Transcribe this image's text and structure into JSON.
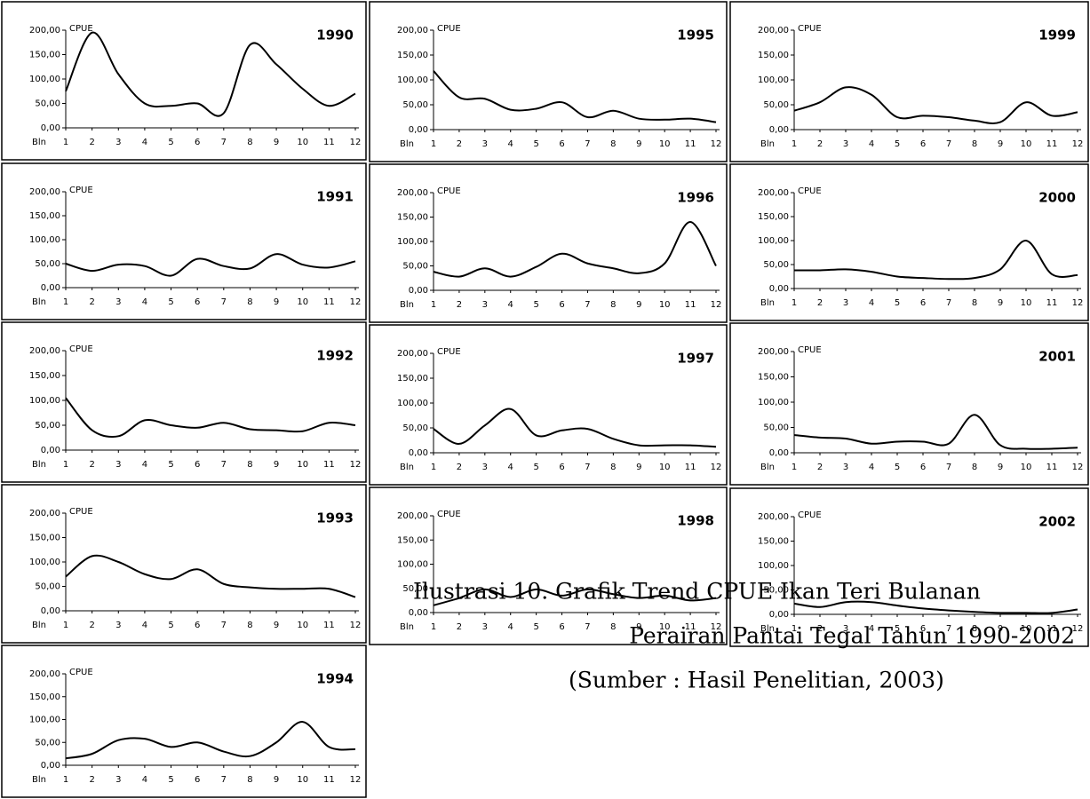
{
  "chart_data": [
    {
      "type": "line",
      "title": "1990",
      "y_label": "CPUE",
      "x_label": "Bln",
      "categories": [
        "1",
        "2",
        "3",
        "4",
        "5",
        "6",
        "7",
        "8",
        "9",
        "10",
        "11",
        "12"
      ],
      "values": [
        75,
        195,
        110,
        50,
        45,
        50,
        30,
        170,
        130,
        80,
        45,
        70
      ],
      "ylim": [
        0,
        200
      ],
      "yticks": [
        {
          "value": 0,
          "label": "0,00"
        },
        {
          "value": 50,
          "label": "50,00"
        },
        {
          "value": 100,
          "label": "100,00"
        },
        {
          "value": 150,
          "label": "150,00"
        },
        {
          "value": 200,
          "label": "200,00"
        }
      ],
      "color": "#000000"
    },
    {
      "type": "line",
      "title": "1991",
      "y_label": "CPUE",
      "x_label": "Bln",
      "categories": [
        "1",
        "2",
        "3",
        "4",
        "5",
        "6",
        "7",
        "8",
        "9",
        "10",
        "11",
        "12"
      ],
      "values": [
        50,
        35,
        48,
        45,
        25,
        60,
        45,
        40,
        70,
        48,
        42,
        55
      ],
      "ylim": [
        0,
        200
      ],
      "yticks": [
        {
          "value": 0,
          "label": "0,00"
        },
        {
          "value": 50,
          "label": "50,00"
        },
        {
          "value": 100,
          "label": "100,00"
        },
        {
          "value": 150,
          "label": "150,00"
        },
        {
          "value": 200,
          "label": "200,00"
        }
      ],
      "color": "#000000"
    },
    {
      "type": "line",
      "title": "1992",
      "y_label": "CPUE",
      "x_label": "Bln",
      "categories": [
        "1",
        "2",
        "3",
        "4",
        "5",
        "6",
        "7",
        "8",
        "9",
        "10",
        "11",
        "12"
      ],
      "values": [
        105,
        40,
        28,
        60,
        50,
        45,
        55,
        42,
        40,
        38,
        55,
        50
      ],
      "ylim": [
        0,
        200
      ],
      "yticks": [
        {
          "value": 0,
          "label": "0,00"
        },
        {
          "value": 50,
          "label": "50,00"
        },
        {
          "value": 100,
          "label": "100,00"
        },
        {
          "value": 150,
          "label": "150,00"
        },
        {
          "value": 200,
          "label": "200,00"
        }
      ],
      "color": "#000000"
    },
    {
      "type": "line",
      "title": "1993",
      "y_label": "CPUE",
      "x_label": "Bln",
      "categories": [
        "1",
        "2",
        "3",
        "4",
        "5",
        "6",
        "7",
        "8",
        "9",
        "10",
        "11",
        "12"
      ],
      "values": [
        70,
        112,
        100,
        75,
        65,
        85,
        55,
        48,
        45,
        45,
        45,
        28
      ],
      "ylim": [
        0,
        200
      ],
      "yticks": [
        {
          "value": 0,
          "label": "0,00"
        },
        {
          "value": 50,
          "label": "50,00"
        },
        {
          "value": 100,
          "label": "100,00"
        },
        {
          "value": 150,
          "label": "150,00"
        },
        {
          "value": 200,
          "label": "200,00"
        }
      ],
      "color": "#000000"
    },
    {
      "type": "line",
      "title": "1994",
      "y_label": "CPUE",
      "x_label": "Bln",
      "categories": [
        "1",
        "2",
        "3",
        "4",
        "5",
        "6",
        "7",
        "8",
        "9",
        "10",
        "11",
        "12"
      ],
      "values": [
        15,
        25,
        55,
        58,
        40,
        50,
        30,
        20,
        50,
        95,
        40,
        35
      ],
      "ylim": [
        0,
        200
      ],
      "yticks": [
        {
          "value": 0,
          "label": "0,00"
        },
        {
          "value": 50,
          "label": "50,00"
        },
        {
          "value": 100,
          "label": "100,00"
        },
        {
          "value": 150,
          "label": "150,00"
        },
        {
          "value": 200,
          "label": "200,00"
        }
      ],
      "color": "#000000"
    },
    {
      "type": "line",
      "title": "1995",
      "y_label": "CPUE",
      "x_label": "Bln",
      "categories": [
        "1",
        "2",
        "3",
        "4",
        "5",
        "6",
        "7",
        "8",
        "9",
        "10",
        "11",
        "12"
      ],
      "values": [
        118,
        65,
        62,
        40,
        42,
        55,
        25,
        38,
        22,
        20,
        22,
        15
      ],
      "ylim": [
        0,
        200
      ],
      "yticks": [
        {
          "value": 0,
          "label": "0,00"
        },
        {
          "value": 50,
          "label": "50,00"
        },
        {
          "value": 100,
          "label": "100,00"
        },
        {
          "value": 150,
          "label": "150,00"
        },
        {
          "value": 200,
          "label": "200,00"
        }
      ],
      "color": "#000000"
    },
    {
      "type": "line",
      "title": "1996",
      "y_label": "CPUE",
      "x_label": "Bln",
      "categories": [
        "1",
        "2",
        "3",
        "4",
        "5",
        "6",
        "7",
        "8",
        "9",
        "10",
        "11",
        "12"
      ],
      "values": [
        38,
        28,
        45,
        28,
        48,
        75,
        55,
        45,
        35,
        55,
        140,
        50
      ],
      "ylim": [
        0,
        200
      ],
      "yticks": [
        {
          "value": 0,
          "label": "0,00"
        },
        {
          "value": 50,
          "label": "50,00"
        },
        {
          "value": 100,
          "label": "100,00"
        },
        {
          "value": 150,
          "label": "150,00"
        },
        {
          "value": 200,
          "label": "200,00"
        }
      ],
      "color": "#000000"
    },
    {
      "type": "line",
      "title": "1997",
      "y_label": "CPUE",
      "x_label": "Bln",
      "categories": [
        "1",
        "2",
        "3",
        "4",
        "5",
        "6",
        "7",
        "8",
        "9",
        "10",
        "11",
        "12"
      ],
      "values": [
        48,
        18,
        55,
        88,
        35,
        45,
        48,
        28,
        15,
        15,
        15,
        12
      ],
      "ylim": [
        0,
        200
      ],
      "yticks": [
        {
          "value": 0,
          "label": "0,00"
        },
        {
          "value": 50,
          "label": "50,00"
        },
        {
          "value": 100,
          "label": "100,00"
        },
        {
          "value": 150,
          "label": "150,00"
        },
        {
          "value": 200,
          "label": "200,00"
        }
      ],
      "color": "#000000"
    },
    {
      "type": "line",
      "title": "1998",
      "y_label": "CPUE",
      "x_label": "Bln",
      "categories": [
        "1",
        "2",
        "3",
        "4",
        "5",
        "6",
        "7",
        "8",
        "9",
        "10",
        "11",
        "12"
      ],
      "values": [
        15,
        30,
        48,
        32,
        48,
        35,
        48,
        38,
        30,
        35,
        25,
        30
      ],
      "ylim": [
        0,
        200
      ],
      "yticks": [
        {
          "value": 0,
          "label": "0,00"
        },
        {
          "value": 50,
          "label": "50,00"
        },
        {
          "value": 100,
          "label": "100,00"
        },
        {
          "value": 150,
          "label": "150,00"
        },
        {
          "value": 200,
          "label": "200,00"
        }
      ],
      "color": "#000000"
    },
    {
      "type": "line",
      "title": "1999",
      "y_label": "CPUE",
      "x_label": "Bln",
      "categories": [
        "1",
        "2",
        "3",
        "4",
        "5",
        "6",
        "7",
        "8",
        "9",
        "10",
        "11",
        "12"
      ],
      "values": [
        38,
        55,
        85,
        70,
        25,
        28,
        25,
        18,
        15,
        55,
        28,
        35
      ],
      "ylim": [
        0,
        200
      ],
      "yticks": [
        {
          "value": 0,
          "label": "0,00"
        },
        {
          "value": 50,
          "label": "50,00"
        },
        {
          "value": 100,
          "label": "100,00"
        },
        {
          "value": 150,
          "label": "150,00"
        },
        {
          "value": 200,
          "label": "200,00"
        }
      ],
      "color": "#000000"
    },
    {
      "type": "line",
      "title": "2000",
      "y_label": "CPUE",
      "x_label": "Bln",
      "categories": [
        "1",
        "2",
        "3",
        "4",
        "5",
        "6",
        "7",
        "8",
        "9",
        "10",
        "11",
        "12"
      ],
      "values": [
        38,
        38,
        40,
        35,
        25,
        22,
        20,
        22,
        40,
        100,
        30,
        28
      ],
      "ylim": [
        0,
        200
      ],
      "yticks": [
        {
          "value": 0,
          "label": "0,00"
        },
        {
          "value": 50,
          "label": "50,00"
        },
        {
          "value": 100,
          "label": "100,00"
        },
        {
          "value": 150,
          "label": "150,00"
        },
        {
          "value": 200,
          "label": "200,00"
        }
      ],
      "color": "#000000"
    },
    {
      "type": "line",
      "title": "2001",
      "y_label": "CPUE",
      "x_label": "Bln",
      "categories": [
        "1",
        "2",
        "3",
        "4",
        "5",
        "6",
        "7",
        "8",
        "9",
        "10",
        "11",
        "12"
      ],
      "values": [
        35,
        30,
        28,
        18,
        22,
        22,
        18,
        75,
        15,
        8,
        8,
        10
      ],
      "ylim": [
        0,
        200
      ],
      "yticks": [
        {
          "value": 0,
          "label": "0,00"
        },
        {
          "value": 50,
          "label": "50,00"
        },
        {
          "value": 100,
          "label": "100,00"
        },
        {
          "value": 150,
          "label": "150,00"
        },
        {
          "value": 200,
          "label": "200,00"
        }
      ],
      "color": "#000000"
    },
    {
      "type": "line",
      "title": "2002",
      "y_label": "CPUE",
      "x_label": "Bln",
      "categories": [
        "1",
        "2",
        "3",
        "4",
        "5",
        "6",
        "7",
        "8",
        "9",
        "10",
        "11",
        "12"
      ],
      "values": [
        22,
        15,
        25,
        25,
        18,
        12,
        8,
        5,
        3,
        3,
        3,
        10
      ],
      "ylim": [
        0,
        200
      ],
      "yticks": [
        {
          "value": 0,
          "label": "0,00"
        },
        {
          "value": 50,
          "label": "50,00"
        },
        {
          "value": 100,
          "label": "100,00"
        },
        {
          "value": 150,
          "label": "150,00"
        },
        {
          "value": 200,
          "label": "200,00"
        }
      ],
      "color": "#000000"
    }
  ],
  "caption": [
    "Ilustrasi 10. Grafik Trend CPUE Ikan Teri Bulanan",
    "Perairan Pantai Tegal Tahun 1990-2002",
    "(Sumber : Hasil Penelitian, 2003)"
  ]
}
